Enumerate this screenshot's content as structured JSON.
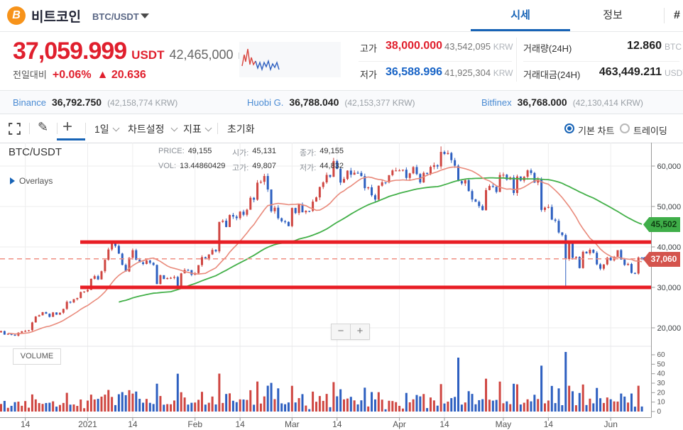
{
  "header": {
    "coin_name": "비트코인",
    "pair": "BTC/USDT",
    "coin_symbol": "B",
    "tab_price": "시세",
    "tab_info": "정보",
    "partial_tab": "#"
  },
  "ticker": {
    "price": "37,059.999",
    "price_unit": "USDT",
    "krw": "42,465,000",
    "krw_unit": "KRW",
    "change_label": "전일대비",
    "change_pct": "+0.06%",
    "change_amt": "▲ 20.636"
  },
  "stats": {
    "high_label": "고가",
    "high": "38,000.000",
    "high_krw": "43,542,095",
    "low_label": "저가",
    "low": "36,588.996",
    "low_krw": "41,925,304",
    "krw_unit": "KRW",
    "vol_label": "거래량(24H)",
    "vol": "12.860",
    "vol_unit": "BTC",
    "amount_label": "거래대금(24H)",
    "amount": "463,449.211",
    "amount_unit": "USDT"
  },
  "exchanges": [
    {
      "name": "Binance",
      "price": "36,792.750",
      "krw": "(42,158,774 KRW)"
    },
    {
      "name": "Huobi G.",
      "price": "36,788.040",
      "krw": "(42,153,377 KRW)"
    },
    {
      "name": "Bitfinex",
      "price": "36,768.000",
      "krw": "(42,130,414 KRW)"
    }
  ],
  "toolbar": {
    "interval": "1일",
    "chart_settings": "차트설정",
    "indicators": "지표",
    "reset": "초기화",
    "radio_basic": "기본 차트",
    "radio_trading": "트레이딩"
  },
  "chart_info": {
    "symbol": "BTC/USDT",
    "overlays": "Overlays",
    "price_label": "PRICE:",
    "price": "49,155",
    "open_label": "시가:",
    "open": "45,131",
    "close_label": "종가:",
    "close": "49,155",
    "vol_label": "VOL:",
    "vol": "13.44860429",
    "high_label": "고가:",
    "high": "49,807",
    "low_label": "저가:",
    "low": "44,832"
  },
  "volume_pane_label": "VOLUME",
  "zoom": {
    "minus": "−",
    "plus": "+"
  },
  "tags": {
    "ma_long": "45,502",
    "last_price": "37,060"
  },
  "chart_data": {
    "type": "candlestick+volume",
    "title": "BTC/USDT daily candles, Dec 2020 - Jun 2021",
    "y_ticks": [
      60000,
      50000,
      40000,
      30000,
      20000
    ],
    "volume_y_ticks": [
      60,
      50,
      40,
      30,
      20,
      10,
      0
    ],
    "x_ticks": [
      {
        "i": 7,
        "label": "14"
      },
      {
        "i": 25,
        "label": "2021"
      },
      {
        "i": 38,
        "label": "14"
      },
      {
        "i": 56,
        "label": "Feb"
      },
      {
        "i": 69,
        "label": "14"
      },
      {
        "i": 84,
        "label": "Mar"
      },
      {
        "i": 97,
        "label": "14"
      },
      {
        "i": 115,
        "label": "Apr"
      },
      {
        "i": 128,
        "label": "14"
      },
      {
        "i": 145,
        "label": "May"
      },
      {
        "i": 158,
        "label": "14"
      },
      {
        "i": 176,
        "label": "Jun"
      }
    ],
    "closes": [
      19191,
      18321,
      18554,
      18264,
      18058,
      18803,
      19144,
      19246,
      19417,
      21335,
      22797,
      23107,
      23861,
      23474,
      22719,
      23810,
      23240,
      23735,
      24677,
      26437,
      26272,
      27084,
      27362,
      28841,
      29002,
      29374,
      32128,
      32782,
      31971,
      33992,
      36824,
      39371,
      40797,
      40254,
      38356,
      35566,
      33922,
      37316,
      39187,
      36825,
      36178,
      35791,
      36630,
      36069,
      35547,
      30825,
      33005,
      32067,
      32289,
      32366,
      32569,
      30432,
      33466,
      34316,
      34269,
      33114,
      33537,
      35510,
      37472,
      36926,
      38144,
      39266,
      38903,
      46196,
      46481,
      44918,
      47909,
      47504,
      47105,
      48717,
      47945,
      49199,
      52149,
      51679,
      55888,
      56099,
      57539,
      54207,
      48824,
      49705,
      47093,
      46339,
      46188,
      45137,
      49631,
      48378,
      50538,
      48561,
      48927,
      48912,
      51206,
      52246,
      54824,
      55963,
      57805,
      57332,
      61243,
      59302,
      55907,
      56804,
      58870,
      57858,
      58346,
      58313,
      57523,
      54529,
      54738,
      52774,
      51704,
      55137,
      55973,
      55950,
      57750,
      58917,
      58918,
      58926,
      59095,
      57059,
      58192,
      59748,
      58019,
      55947,
      58326,
      58083,
      59793,
      60204,
      59893,
      63503,
      62980,
      63229,
      61455,
      60087,
      56275,
      55703,
      56507,
      53808,
      51731,
      51153,
      50110,
      49078,
      54056,
      55071,
      54884,
      53584,
      57796,
      57859,
      56631,
      57200,
      53333,
      57424,
      56414,
      57356,
      58928,
      58280,
      55887,
      56714,
      49150,
      49716,
      49880,
      46760,
      46456,
      43580,
      42945,
      37002,
      40782,
      37304,
      37531,
      34770,
      38796,
      38392,
      39294,
      38556,
      35697,
      34616,
      35678,
      37341,
      36685,
      37575,
      39208,
      36894,
      35551,
      35796,
      33575,
      33416,
      37389,
      37060
    ],
    "low_overrides": {
      "163": 29800
    },
    "high_overrides": {
      "127": 64854
    },
    "volume_overrides": {
      "51": 40,
      "132": 57,
      "163": 63
    },
    "resistance": 41200,
    "support": 30000,
    "last_price": 37060,
    "ma_long_value": 45502,
    "ma_short_window": 15,
    "ma_long_window": 50,
    "colors": {
      "up": "#cf4641",
      "down": "#2d5fc0",
      "ma_short": "#e98a7b",
      "ma_long": "#43b049",
      "level_line": "#e81e25",
      "dashed_last": "#ef8f83",
      "grid": "#ededee",
      "axis": "#9a9a9a",
      "tick_text": "#3c4043"
    }
  }
}
